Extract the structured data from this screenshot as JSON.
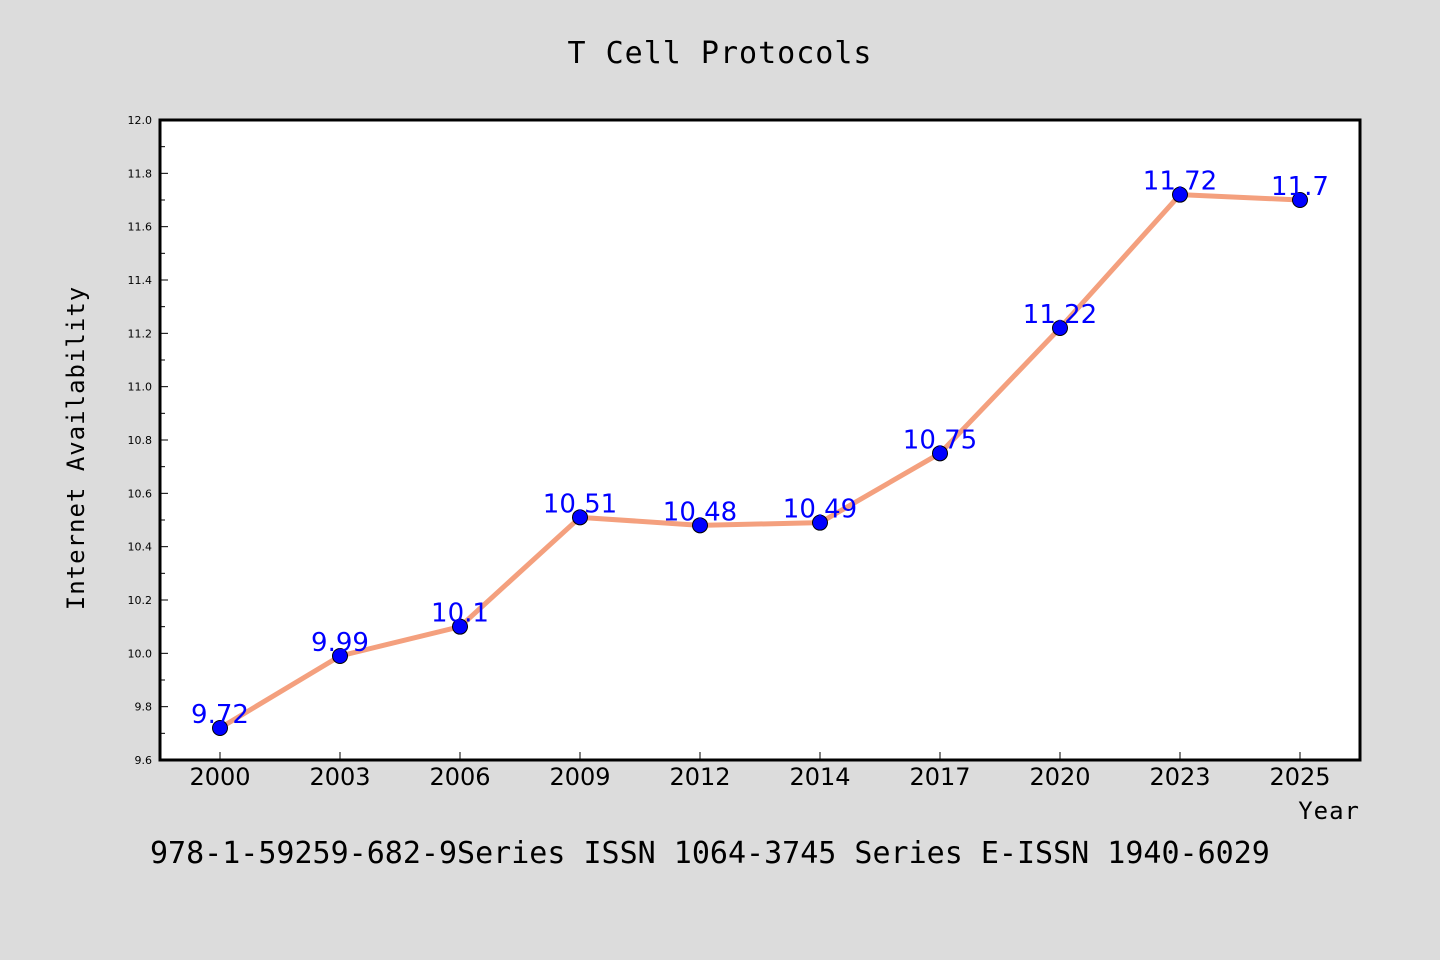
{
  "chart_data": {
    "type": "line",
    "title": "T Cell Protocols",
    "xlabel": "Year",
    "ylabel": "Internet Availability",
    "categories": [
      "2000",
      "2003",
      "2006",
      "2009",
      "2012",
      "2014",
      "2017",
      "2020",
      "2023",
      "2025"
    ],
    "series": [
      {
        "values": [
          9.72,
          9.99,
          10.1,
          10.51,
          10.48,
          10.49,
          10.75,
          11.22,
          11.72,
          11.7
        ],
        "data_labels": [
          "9.72",
          "9.99",
          "10.1",
          "10.51",
          "10.48",
          "10.49",
          "10.75",
          "11.22",
          "11.72",
          "11.7"
        ],
        "line_color": "#f4a07e",
        "marker_color": "#0000ff"
      }
    ],
    "ylim": [
      9.6,
      12.0
    ],
    "yticks": [
      "9.6",
      "9.8",
      "10.0",
      "10.2",
      "10.4",
      "10.6",
      "10.8",
      "11.0",
      "11.2",
      "11.4",
      "11.6",
      "11.8",
      "12.0"
    ],
    "grid": false,
    "legend": "none"
  },
  "footer": "978-1-59259-682-9Series ISSN 1064-3745 Series E-ISSN 1940-6029",
  "colors": {
    "background": "#dcdcdc",
    "plot_area": "#ffffff",
    "line": "#f4a07e",
    "marker": "#0000ff",
    "data_label": "#0000ff"
  }
}
